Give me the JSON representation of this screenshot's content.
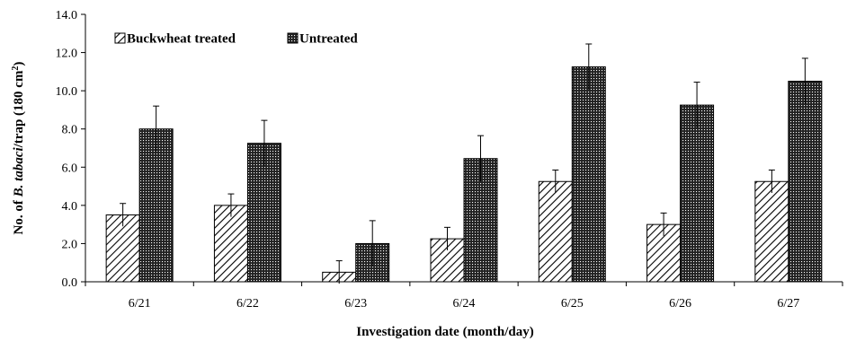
{
  "chart_data": {
    "type": "bar",
    "title": "",
    "xlabel": "Investigation date (month/day)",
    "ylabel_parts": {
      "prefix": "No. of ",
      "species": "B. tabaci",
      "suffix": "/trap (180 cm",
      "sup": "2",
      "close": ")"
    },
    "categories": [
      "6/21",
      "6/22",
      "6/23",
      "6/24",
      "6/25",
      "6/26",
      "6/27"
    ],
    "ylim": [
      0,
      14
    ],
    "yticks": [
      "0.0",
      "2.0",
      "4.0",
      "6.0",
      "8.0",
      "10.0",
      "12.0",
      "14.0"
    ],
    "grid": false,
    "legend_position": "top-left",
    "series": [
      {
        "name": "Buckwheat treated",
        "pattern": "diagonal-hatch",
        "values": [
          3.5,
          4.0,
          0.5,
          2.25,
          5.25,
          3.0,
          5.25
        ],
        "errors": [
          0.6,
          0.6,
          0.6,
          0.6,
          0.6,
          0.6,
          0.6
        ]
      },
      {
        "name": "Untreated",
        "pattern": "dense-dots",
        "values": [
          8.0,
          7.25,
          2.0,
          6.45,
          11.25,
          9.25,
          10.5
        ],
        "errors": [
          1.2,
          1.2,
          1.2,
          1.2,
          1.2,
          1.2,
          1.2
        ]
      }
    ]
  }
}
